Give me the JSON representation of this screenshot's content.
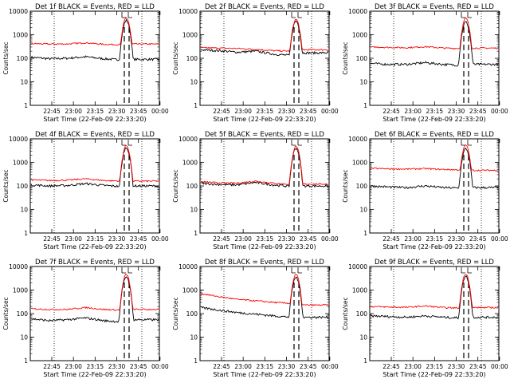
{
  "chart_data": [
    {
      "type": "line",
      "title": "Det 1f BLACK = Events, RED = LLD",
      "xlabel": "Start Time (22-Feb-09 22:33:20)",
      "ylabel": "Counts/sec",
      "yscale": "log",
      "ylim": [
        1,
        10000
      ],
      "yticks": [
        "1",
        "10",
        "100",
        "1000",
        "10000"
      ],
      "xticks": [
        "22:45",
        "23:00",
        "23:15",
        "23:30",
        "23:45",
        "00:00"
      ],
      "grid": false,
      "colors": {
        "events": "#000000",
        "lld": "#ff0000"
      },
      "markers": [
        "dotted vertical line near 22:45",
        "dotted vertical line near 00:00",
        "dashed vertical lines near 23:44-23:47",
        "D markers at top"
      ],
      "series": [
        {
          "name": "BLACK = Events",
          "values": [
            110,
            95,
            100,
            115,
            95,
            85,
            4000,
            90
          ]
        },
        {
          "name": "RED = LLD",
          "values": [
            420,
            400,
            405,
            450,
            390,
            380,
            5200,
            400
          ]
        }
      ]
    },
    {
      "type": "line",
      "title": "Det 2f BLACK = Events, RED = LLD",
      "xlabel": "Start Time (22-Feb-09 22:33:20)",
      "ylabel": "Counts/sec",
      "yscale": "log",
      "ylim": [
        1,
        10000
      ],
      "yticks": [
        "1",
        "10",
        "100",
        "1000",
        "10000"
      ],
      "xticks": [
        "22:45",
        "23:00",
        "23:15",
        "23:30",
        "23:45",
        "00:00"
      ],
      "grid": false,
      "colors": {
        "events": "#000000",
        "lld": "#ff0000"
      },
      "series": [
        {
          "name": "BLACK = Events",
          "values": [
            230,
            210,
            180,
            200,
            150,
            130,
            3800,
            170
          ]
        },
        {
          "name": "RED = LLD",
          "values": [
            280,
            270,
            260,
            240,
            210,
            200,
            4500,
            230
          ]
        }
      ]
    },
    {
      "type": "line",
      "title": "Det 3f BLACK = Events, RED = LLD",
      "xlabel": "Start Time (22-Feb-09 22:33:20)",
      "ylabel": "Counts/sec",
      "yscale": "log",
      "ylim": [
        1,
        10000
      ],
      "yticks": [
        "1",
        "10",
        "100",
        "1000",
        "10000"
      ],
      "xticks": [
        "22:45",
        "23:00",
        "23:15",
        "23:30",
        "23:45",
        "00:00"
      ],
      "grid": false,
      "colors": {
        "events": "#000000",
        "lld": "#ff0000"
      },
      "series": [
        {
          "name": "BLACK = Events",
          "values": [
            60,
            55,
            55,
            65,
            55,
            50,
            3500,
            55
          ]
        },
        {
          "name": "RED = LLD",
          "values": [
            300,
            290,
            280,
            310,
            270,
            260,
            5000,
            270
          ]
        }
      ]
    },
    {
      "type": "line",
      "title": "Det 4f BLACK = Events, RED = LLD",
      "xlabel": "Start Time (22-Feb-09 22:33:20)",
      "ylabel": "Counts/sec",
      "yscale": "log",
      "ylim": [
        1,
        10000
      ],
      "yticks": [
        "1",
        "10",
        "100",
        "1000",
        "10000"
      ],
      "xticks": [
        "22:45",
        "23:00",
        "23:15",
        "23:30",
        "23:45",
        "00:00"
      ],
      "grid": false,
      "colors": {
        "events": "#000000",
        "lld": "#ff0000"
      },
      "series": [
        {
          "name": "BLACK = Events",
          "values": [
            110,
            100,
            105,
            125,
            105,
            95,
            4200,
            100
          ]
        },
        {
          "name": "RED = LLD",
          "values": [
            180,
            170,
            175,
            200,
            170,
            160,
            5200,
            160
          ]
        }
      ]
    },
    {
      "type": "line",
      "title": "Det 5f BLACK = Events, RED = LLD",
      "xlabel": "Start Time (22-Feb-09 22:33:20)",
      "ylabel": "Counts/sec",
      "yscale": "log",
      "ylim": [
        1,
        10000
      ],
      "yticks": [
        "1",
        "10",
        "100",
        "1000",
        "10000"
      ],
      "xticks": [
        "22:45",
        "23:00",
        "23:15",
        "23:30",
        "23:45",
        "00:00"
      ],
      "grid": false,
      "colors": {
        "events": "#000000",
        "lld": "#ff0000"
      },
      "series": [
        {
          "name": "BLACK = Events",
          "values": [
            130,
            115,
            110,
            140,
            110,
            95,
            4000,
            100
          ]
        },
        {
          "name": "RED = LLD",
          "values": [
            150,
            135,
            130,
            160,
            130,
            115,
            4800,
            120
          ]
        }
      ]
    },
    {
      "type": "line",
      "title": "Det 6f BLACK = Events, RED = LLD",
      "xlabel": "Start Time (22-Feb-09 22:33:20)",
      "ylabel": "Counts/sec",
      "yscale": "log",
      "ylim": [
        1,
        10000
      ],
      "yticks": [
        "1",
        "10",
        "100",
        "1000",
        "10000"
      ],
      "xticks": [
        "22:45",
        "23:00",
        "23:15",
        "23:30",
        "23:45",
        "00:00"
      ],
      "grid": false,
      "colors": {
        "events": "#000000",
        "lld": "#ff0000"
      },
      "series": [
        {
          "name": "BLACK = Events",
          "values": [
            100,
            90,
            85,
            100,
            85,
            80,
            3800,
            85
          ]
        },
        {
          "name": "RED = LLD",
          "values": [
            560,
            530,
            520,
            540,
            500,
            480,
            5500,
            460
          ]
        }
      ]
    },
    {
      "type": "line",
      "title": "Det 7f BLACK = Events, RED = LLD",
      "xlabel": "Start Time (22-Feb-09 22:33:20)",
      "ylabel": "Counts/sec",
      "yscale": "log",
      "ylim": [
        1,
        10000
      ],
      "yticks": [
        "1",
        "10",
        "100",
        "1000",
        "10000"
      ],
      "xticks": [
        "22:45",
        "23:00",
        "23:15",
        "23:30",
        "23:45",
        "00:00"
      ],
      "grid": false,
      "colors": {
        "events": "#000000",
        "lld": "#ff0000"
      },
      "series": [
        {
          "name": "BLACK = Events",
          "values": [
            60,
            50,
            55,
            65,
            50,
            45,
            3700,
            55
          ]
        },
        {
          "name": "RED = LLD",
          "values": [
            160,
            150,
            150,
            180,
            150,
            140,
            4600,
            150
          ]
        }
      ]
    },
    {
      "type": "line",
      "title": "Det 8f BLACK = Events, RED = LLD",
      "xlabel": "Start Time (22-Feb-09 22:33:20)",
      "ylabel": "Counts/sec",
      "yscale": "log",
      "ylim": [
        1,
        10000
      ],
      "yticks": [
        "1",
        "10",
        "100",
        "1000",
        "10000"
      ],
      "xticks": [
        "22:45",
        "23:00",
        "23:15",
        "23:30",
        "23:45",
        "00:00"
      ],
      "grid": false,
      "colors": {
        "events": "#000000",
        "lld": "#ff0000"
      },
      "series": [
        {
          "name": "BLACK = Events",
          "values": [
            180,
            140,
            110,
            95,
            80,
            70,
            3500,
            70
          ]
        },
        {
          "name": "RED = LLD",
          "values": [
            700,
            520,
            400,
            350,
            300,
            270,
            4500,
            230
          ]
        }
      ]
    },
    {
      "type": "line",
      "title": "Det 9f BLACK = Events, RED = LLD",
      "xlabel": "Start Time (22-Feb-09 22:33:20)",
      "ylabel": "Counts/sec",
      "yscale": "log",
      "ylim": [
        1,
        10000
      ],
      "yticks": [
        "1",
        "10",
        "100",
        "1000",
        "10000"
      ],
      "xticks": [
        "22:45",
        "23:00",
        "23:15",
        "23:30",
        "23:45",
        "00:00"
      ],
      "grid": false,
      "colors": {
        "events": "#000000",
        "lld": "#ff0000"
      },
      "series": [
        {
          "name": "BLACK = Events",
          "values": [
            80,
            75,
            70,
            80,
            70,
            65,
            3800,
            70
          ]
        },
        {
          "name": "RED = LLD",
          "values": [
            200,
            190,
            185,
            210,
            180,
            170,
            4900,
            180
          ]
        }
      ]
    }
  ]
}
